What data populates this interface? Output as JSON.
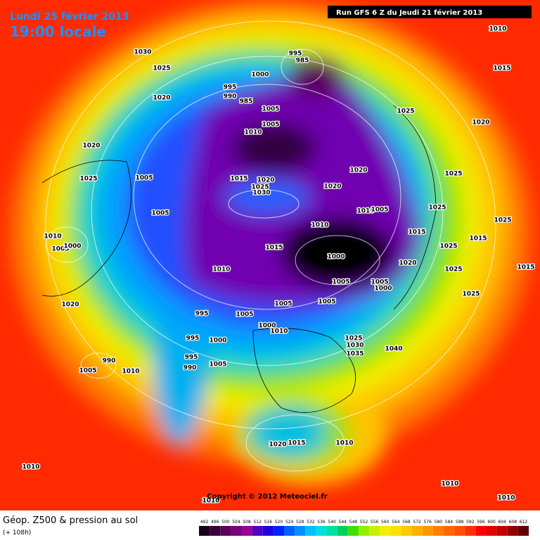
{
  "header": {
    "date": "Lundi 25 février 2013",
    "time": "19:00 locale",
    "run": "Run GFS 6 Z du Jeudi 21 février 2013"
  },
  "isobar_labels": [
    1030,
    1025,
    1020,
    995,
    985,
    1000,
    995,
    990,
    985,
    1005,
    1005,
    1010,
    1020,
    1025,
    1005,
    1015,
    1020,
    1025,
    1030,
    1020,
    1020,
    1010,
    1005,
    1005,
    1010,
    1015,
    1010,
    1005,
    1000,
    1010,
    1000,
    1005,
    1005,
    1000,
    1020,
    1015,
    1025,
    1025,
    1025,
    1020,
    1010,
    1015,
    1025,
    1025,
    1015,
    1015,
    1025,
    1025,
    1005,
    1005,
    1020,
    995,
    1005,
    1000,
    1010,
    995,
    1000,
    1025,
    1030,
    1035,
    1040,
    995,
    990,
    1005,
    990,
    1005,
    1010,
    1020,
    1015,
    1010,
    1010,
    1010,
    1010,
    1010
  ],
  "footer": {
    "title": "Géop. Z500 & pression au sol",
    "lead": "(+ 108h)",
    "copyright": "Copyright © 2012 Meteociel.fr"
  },
  "colorbar": {
    "labels": [
      492,
      496,
      500,
      504,
      508,
      512,
      516,
      520,
      524,
      528,
      532,
      536,
      540,
      544,
      548,
      552,
      556,
      560,
      564,
      568,
      572,
      576,
      580,
      584,
      588,
      592,
      596,
      600,
      604,
      608,
      612
    ],
    "colors": [
      "#1a001a",
      "#3a003a",
      "#5a005a",
      "#7a007a",
      "#9a009a",
      "#5000c0",
      "#2000e0",
      "#0020ff",
      "#0060ff",
      "#0090ff",
      "#00c0ff",
      "#00e0e0",
      "#00e0a0",
      "#00d060",
      "#40e000",
      "#90f000",
      "#c8f000",
      "#f0f000",
      "#ffe000",
      "#ffc800",
      "#ffb000",
      "#ff9800",
      "#ff8000",
      "#ff6800",
      "#ff5000",
      "#ff3000",
      "#ff0000",
      "#e00000",
      "#c00000",
      "#900000",
      "#600000"
    ]
  }
}
